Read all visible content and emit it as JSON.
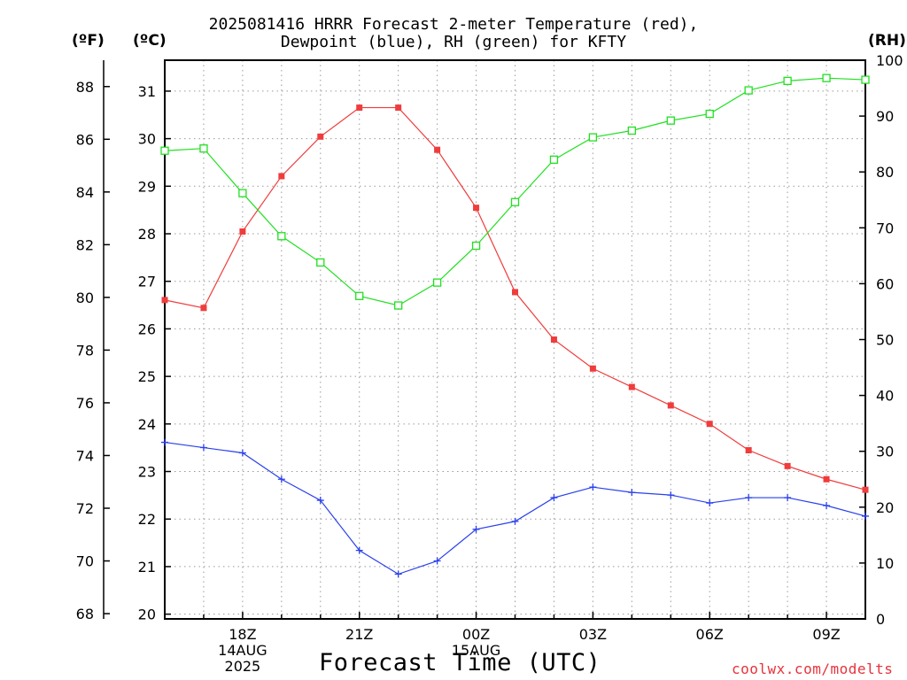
{
  "header": {
    "title_line1": "2025081416 HRRR Forecast 2-meter Temperature (red),",
    "title_line2": "Dewpoint (blue), RH (green) for KFTY",
    "unit_f": "(ºF)",
    "unit_c": "(ºC)",
    "unit_rh": "(RH)"
  },
  "footer": {
    "xlabel": "Forecast Time (UTC)",
    "credit": "coolwx.com/modelts"
  },
  "chart_data": {
    "type": "line",
    "title": "2025081416 HRRR Forecast 2-meter Temperature (red), Dewpoint (blue), RH (green) for KFTY",
    "xlabel": "Forecast Time (UTC)",
    "x_hours": [
      16,
      17,
      18,
      19,
      20,
      21,
      22,
      23,
      24,
      25,
      26,
      27,
      28,
      29,
      30,
      31,
      32,
      33,
      34
    ],
    "xlim": [
      16,
      34
    ],
    "x_ticks": [
      {
        "hour": 18,
        "lines": [
          "18Z",
          "14AUG",
          "2025"
        ]
      },
      {
        "hour": 21,
        "lines": [
          "21Z"
        ]
      },
      {
        "hour": 24,
        "lines": [
          "00Z",
          "15AUG"
        ]
      },
      {
        "hour": 27,
        "lines": [
          "03Z"
        ]
      },
      {
        "hour": 30,
        "lines": [
          "06Z"
        ]
      },
      {
        "hour": 33,
        "lines": [
          "09Z"
        ]
      }
    ],
    "axes": {
      "fahrenheit": {
        "label": "(ºF)",
        "range": [
          67.8,
          89.0
        ],
        "ticks": [
          68,
          70,
          72,
          74,
          76,
          78,
          80,
          82,
          84,
          86,
          88
        ]
      },
      "celsius": {
        "label": "(ºC)",
        "range": [
          19.9,
          31.65
        ],
        "ticks": [
          20,
          21,
          22,
          23,
          24,
          25,
          26,
          27,
          28,
          29,
          30,
          31
        ]
      },
      "rh": {
        "label": "(RH)",
        "range": [
          0,
          100
        ],
        "ticks": [
          0,
          10,
          20,
          30,
          40,
          50,
          60,
          70,
          80,
          90,
          100
        ]
      }
    },
    "grid": true,
    "series": [
      {
        "name": "Temperature",
        "color": "#f03c3c",
        "axis": "fahrenheit",
        "marker": "filled-square",
        "values": [
          79.9,
          79.6,
          82.5,
          84.6,
          86.1,
          87.2,
          87.2,
          85.6,
          83.4,
          80.2,
          78.4,
          77.3,
          76.6,
          75.9,
          75.2,
          74.2,
          73.6,
          73.1,
          72.7
        ]
      },
      {
        "name": "Dewpoint",
        "color": "#2a40ec",
        "axis": "fahrenheit",
        "marker": "plus",
        "values": [
          74.5,
          74.3,
          74.1,
          73.1,
          72.3,
          70.4,
          69.5,
          70.0,
          71.2,
          71.5,
          72.4,
          72.8,
          72.6,
          72.5,
          72.2,
          72.4,
          72.4,
          72.1,
          71.7
        ]
      },
      {
        "name": "RH",
        "color": "#20e020",
        "axis": "rh",
        "marker": "open-square",
        "values": [
          83.8,
          84.2,
          76.2,
          68.5,
          63.8,
          57.8,
          56.1,
          60.2,
          66.8,
          74.6,
          82.2,
          86.2,
          87.4,
          89.2,
          90.4,
          94.6,
          96.3,
          96.8,
          96.5
        ]
      }
    ]
  }
}
